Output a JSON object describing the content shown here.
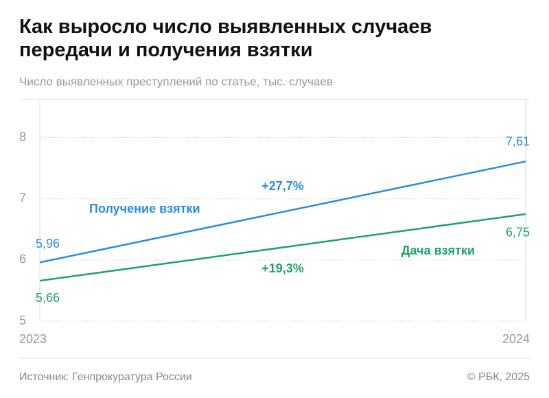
{
  "chart_data": {
    "type": "line",
    "title": "Как выросло число выявленных случаев передачи и получения взятки",
    "subtitle": "Число выявленных преступлений по статье, тыс. случаев",
    "source": "Источник: Генпрокуратура России",
    "credit": "© РБК, 2025",
    "x": [
      "2023",
      "2024"
    ],
    "series": [
      {
        "name": "Получение взятки",
        "color": "#2b8ce6",
        "values": [
          5.96,
          7.61
        ],
        "value_labels": [
          "5,96",
          "7,61"
        ],
        "change_label": "+27,7%"
      },
      {
        "name": "Дача взятки",
        "color": "#1da36a",
        "values": [
          5.66,
          6.75
        ],
        "value_labels": [
          "5,66",
          "6,75"
        ],
        "change_label": "+19,3%"
      }
    ],
    "ylim": [
      5,
      8.6
    ],
    "yticks": [
      5,
      6,
      7,
      8
    ],
    "grid": true
  }
}
